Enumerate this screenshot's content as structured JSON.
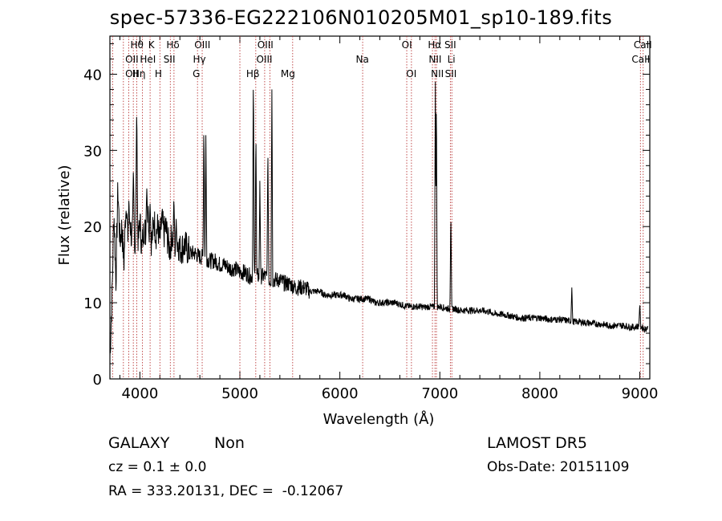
{
  "chart_data": {
    "type": "line",
    "title": "spec-57336-EG222106N010205M01_sp10-189.fits",
    "xlabel": "Wavelength (Å)",
    "ylabel": "Flux (relative)",
    "xlim": [
      3700,
      9100
    ],
    "ylim": [
      0,
      45
    ],
    "xticks": [
      4000,
      5000,
      6000,
      7000,
      8000,
      9000
    ],
    "yticks": [
      0,
      10,
      20,
      30,
      40
    ],
    "grid": false,
    "series": [
      {
        "values_x": [
          3700,
          3720,
          3740,
          3760,
          3780,
          3800,
          3820,
          3840,
          3860,
          3880,
          3900,
          3920,
          3935,
          3950,
          3965,
          3985,
          4000,
          4020,
          4040,
          4060,
          4080,
          4101,
          4120,
          4140,
          4160,
          4180,
          4200,
          4220,
          4240,
          4260,
          4280,
          4300,
          4320,
          4340,
          4360,
          4380,
          4400,
          4450,
          4500,
          4550,
          4600,
          4650,
          4700,
          4750,
          4800,
          4850,
          4900,
          4950,
          5000,
          5050,
          5100,
          5150,
          5200,
          5250,
          5300,
          5350,
          5400,
          5450,
          5500,
          5550,
          5600,
          5650,
          5700,
          5750,
          5800,
          5850,
          5900,
          5950,
          6000,
          6050,
          6100,
          6150,
          6200,
          6250,
          6300,
          6350,
          6400,
          6450,
          6500,
          6550,
          6600,
          6650,
          6700,
          6750,
          6800,
          6850,
          6900,
          6950,
          7000,
          7050,
          7100,
          7150,
          7200,
          7300,
          7400,
          7500,
          7550,
          7600,
          7700,
          7800,
          7900,
          8000,
          8100,
          8200,
          8300,
          8350,
          8400,
          8500,
          8600,
          8700,
          8800,
          8850,
          8900,
          8950,
          9000,
          9050,
          9080
        ],
        "values_y": [
          3,
          10,
          22,
          13,
          25,
          18,
          20,
          15,
          23,
          16,
          21,
          18,
          20,
          17,
          22,
          18,
          21,
          17,
          20,
          19,
          22,
          19,
          18,
          21,
          19,
          20,
          18,
          21,
          19,
          20,
          18,
          17,
          19,
          18,
          17,
          18,
          17,
          17.5,
          16.5,
          16.5,
          16,
          16,
          15.5,
          15.5,
          15,
          15,
          14.5,
          14.5,
          14,
          14,
          13.5,
          13.5,
          13.5,
          13.5,
          13,
          13,
          13,
          12.5,
          12.5,
          12,
          12,
          12,
          11.5,
          11.5,
          11.5,
          11,
          11,
          11,
          11,
          11,
          10.5,
          10.5,
          10.5,
          10.5,
          10.5,
          10,
          10,
          10,
          10,
          10,
          9.8,
          9.6,
          9.5,
          9.5,
          9.5,
          9.4,
          9.5,
          9.4,
          9.5,
          9.3,
          9.2,
          9.2,
          9,
          9,
          9,
          8.8,
          8.5,
          8.5,
          8.3,
          8,
          8,
          8,
          7.8,
          7.8,
          7.6,
          7.5,
          7.5,
          7.3,
          7.2,
          7,
          7,
          7,
          6.8,
          6.8,
          7,
          6.5,
          6.8
        ]
      }
    ],
    "emission_lines": [
      {
        "x": 3727,
        "y": 3
      },
      {
        "x": 3869,
        "y": 22
      },
      {
        "x": 3890,
        "y": 24
      },
      {
        "x": 3935,
        "y": 28
      },
      {
        "x": 3968,
        "y": 36
      },
      {
        "x": 4069,
        "y": 25
      },
      {
        "x": 4102,
        "y": 23
      },
      {
        "x": 4340,
        "y": 24
      },
      {
        "x": 4363,
        "y": 21
      },
      {
        "x": 4640,
        "y": 34
      },
      {
        "x": 4660,
        "y": 32
      },
      {
        "x": 5135,
        "y": 41
      },
      {
        "x": 5160,
        "y": 33
      },
      {
        "x": 5200,
        "y": 26
      },
      {
        "x": 5280,
        "y": 31
      },
      {
        "x": 5320,
        "y": 38
      },
      {
        "x": 6955,
        "y": 39
      },
      {
        "x": 6965,
        "y": 38
      },
      {
        "x": 7110,
        "y": 22
      },
      {
        "x": 8320,
        "y": 12
      },
      {
        "x": 9000,
        "y": 10
      }
    ],
    "annotations": {
      "row1": [
        {
          "label": "Hθ",
          "x": 3970
        },
        {
          "label": "K",
          "x": 4115
        },
        {
          "label": "Hδ",
          "x": 4330
        },
        {
          "label": "OIII",
          "x": 4625
        },
        {
          "label": "OIII",
          "x": 5255
        },
        {
          "label": "OI",
          "x": 6670
        },
        {
          "label": "Hα",
          "x": 6948
        },
        {
          "label": "SII",
          "x": 7105
        },
        {
          "label": "CaII",
          "x": 9030
        }
      ],
      "row2": [
        {
          "label": "OII",
          "x": 3920
        },
        {
          "label": "HeI",
          "x": 4080
        },
        {
          "label": "SII",
          "x": 4295
        },
        {
          "label": "Hγ",
          "x": 4595
        },
        {
          "label": "OIII",
          "x": 5245
        },
        {
          "label": "Na",
          "x": 6225
        },
        {
          "label": "NII",
          "x": 6953
        },
        {
          "label": "Li",
          "x": 7115
        },
        {
          "label": "CaII",
          "x": 9010
        }
      ],
      "row3": [
        {
          "label": "OII",
          "x": 3920
        },
        {
          "label": "Hη",
          "x": 3990
        },
        {
          "label": "H",
          "x": 4185
        },
        {
          "label": "G",
          "x": 4565
        },
        {
          "label": "Hβ",
          "x": 5130
        },
        {
          "label": "Mg",
          "x": 5480
        },
        {
          "label": "OI",
          "x": 6715
        },
        {
          "label": "NII",
          "x": 6975
        },
        {
          "label": "SII",
          "x": 7110
        }
      ],
      "line_markers": [
        3727,
        3835,
        3889,
        3934,
        3969,
        4026,
        4102,
        4200,
        4304,
        4341,
        4576,
        4623,
        5000,
        5159,
        5248,
        5300,
        5528,
        6228,
        6669,
        6716,
        6926,
        6951,
        6966,
        7105,
        7120,
        9006,
        9034
      ]
    },
    "info": {
      "object_class": "GALAXY",
      "subclass": "Non",
      "cz": "cz = 0.1 ± 0.0",
      "coords": "RA = 333.20131, DEC =  -0.12067",
      "survey": "LAMOST DR5",
      "obs_date": "Obs-Date: 20151109"
    },
    "colors": {
      "spectrum": "#000000",
      "markers": "#b22222",
      "axes": "#000000"
    }
  }
}
